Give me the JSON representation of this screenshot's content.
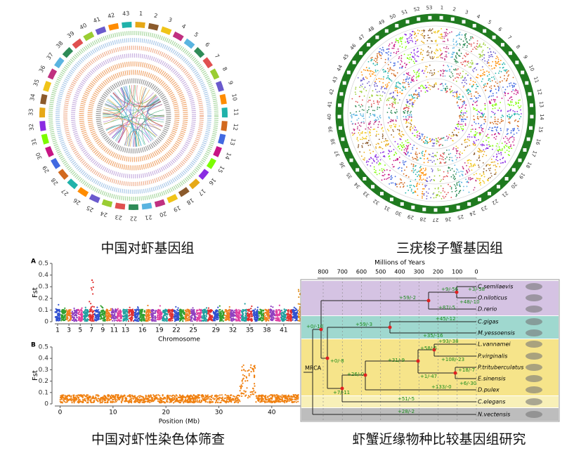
{
  "panels": [
    {
      "caption": "中国对虾基因组",
      "chromosomes": [
        "1",
        "2",
        "3",
        "4",
        "5",
        "6",
        "7",
        "8",
        "9",
        "10",
        "11",
        "12",
        "13",
        "14",
        "15",
        "16",
        "17",
        "18",
        "19",
        "20",
        "21",
        "22",
        "23",
        "24",
        "25",
        "26",
        "27",
        "28",
        "29",
        "30",
        "31",
        "32",
        "33",
        "34",
        "35",
        "36",
        "37",
        "38",
        "39",
        "40",
        "41",
        "42",
        "43"
      ]
    },
    {
      "caption": "三疣梭子蟹基因组",
      "chromosomes": [
        "1",
        "2",
        "3",
        "4",
        "5",
        "6",
        "7",
        "8",
        "9",
        "10",
        "11",
        "12",
        "13",
        "14",
        "15",
        "16",
        "17",
        "18",
        "19",
        "20",
        "21",
        "22",
        "23",
        "24",
        "25",
        "26",
        "27",
        "28",
        "29",
        "30",
        "31",
        "32",
        "33",
        "34",
        "35",
        "36",
        "37",
        "38",
        "39",
        "40",
        "41",
        "42",
        "43",
        "44",
        "45",
        "46",
        "47",
        "48",
        "49",
        "50",
        "51",
        "52",
        "53"
      ]
    },
    {
      "caption": "中国对虾性染色体筛查",
      "plots": [
        {
          "label": "A",
          "ylabel": "Fst",
          "xlabel": "Chromosome",
          "yticks": [
            0,
            0.1,
            0.2,
            0.3,
            0.4,
            0.5
          ],
          "ylim": [
            0,
            0.5
          ],
          "xlim": [
            0.5,
            44.5
          ],
          "xticks": [
            1,
            3,
            5,
            7,
            9,
            11,
            13,
            16,
            19,
            22,
            25,
            29,
            32,
            35,
            38,
            41
          ]
        },
        {
          "label": "B",
          "ylabel": "Fst",
          "xlabel": "Position (Mb)",
          "yticks": [
            0,
            0.1,
            0.2,
            0.3,
            0.4,
            0.5
          ],
          "ylim": [
            0,
            0.5
          ],
          "xlim": [
            -1,
            46
          ],
          "xticks": [
            0,
            10,
            20,
            30,
            40
          ]
        }
      ]
    },
    {
      "caption": "虾蟹近缘物种比较基因组研究",
      "title": "Millions of Years",
      "xticks": [
        800,
        700,
        600,
        500,
        400,
        300,
        200,
        100,
        0
      ],
      "root": "MRCA",
      "species": [
        "C.semilaevis",
        "O.niloticus",
        "D.rerio",
        "C.gigas",
        "M.yessoensis",
        "L.vannamei",
        "P.virginalis",
        "P.trituberculatus",
        "E.sinensis",
        "D.pulex",
        "C.elegans",
        "N.vectensis"
      ],
      "branch_labels": [
        "+9/-56",
        "+3/-58",
        "+59/-2",
        "+48/-10",
        "+87/-5",
        "+45/-12",
        "+0/-10",
        "+59/-3",
        "+35/-16",
        "+93/-38",
        "+58/-5",
        "+108/-23",
        "+31/-9",
        "+26/-0",
        "+0/-8",
        "+18/-7",
        "+1/-47",
        "+6/-30",
        "+133/-0",
        "+7/-11",
        "+51/-5",
        "+28/-2"
      ]
    }
  ]
}
